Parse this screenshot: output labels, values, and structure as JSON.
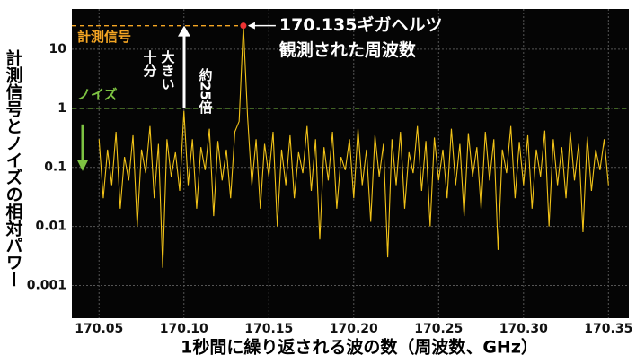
{
  "chart_data": {
    "type": "line",
    "x_label": "1秒間に繰り返される波の数（周波数、GHz）",
    "y_label": "計測信号とノイズの相対パワー",
    "log_y": true,
    "grid": true,
    "xlim": [
      170.034,
      170.362
    ],
    "ylim": [
      0.00028,
      48
    ],
    "xticks": [
      170.05,
      {
        "value": 170.1,
        "label": "170.10"
      },
      170.15,
      {
        "value": 170.2,
        "label": "170.20"
      },
      170.25,
      {
        "value": 170.3,
        "label": "170.30"
      },
      170.35
    ],
    "yticks": [
      10,
      1,
      0.1,
      0.01,
      0.001
    ],
    "x": [
      170.05,
      170.0525,
      170.055,
      170.0575,
      170.06,
      170.0625,
      170.065,
      170.0675,
      170.07,
      170.0725,
      170.075,
      170.0775,
      170.08,
      170.0825,
      170.085,
      170.0875,
      170.09,
      170.0925,
      170.095,
      170.0975,
      170.1,
      170.1025,
      170.105,
      170.1075,
      170.11,
      170.1125,
      170.115,
      170.1175,
      170.12,
      170.1225,
      170.125,
      170.1275,
      170.13,
      170.1325,
      170.135,
      170.1375,
      170.14,
      170.1425,
      170.145,
      170.1475,
      170.15,
      170.1525,
      170.155,
      170.1575,
      170.16,
      170.1625,
      170.165,
      170.1675,
      170.17,
      170.1725,
      170.175,
      170.1775,
      170.18,
      170.1825,
      170.185,
      170.1875,
      170.19,
      170.1925,
      170.195,
      170.1975,
      170.2,
      170.2025,
      170.205,
      170.2075,
      170.21,
      170.2125,
      170.215,
      170.2175,
      170.22,
      170.2225,
      170.225,
      170.2275,
      170.23,
      170.2325,
      170.235,
      170.2375,
      170.24,
      170.2425,
      170.245,
      170.2475,
      170.25,
      170.2525,
      170.255,
      170.2575,
      170.26,
      170.2625,
      170.265,
      170.2675,
      170.27,
      170.2725,
      170.275,
      170.2775,
      170.28,
      170.2825,
      170.285,
      170.2875,
      170.29,
      170.2925,
      170.295,
      170.2975,
      170.3,
      170.3025,
      170.305,
      170.3075,
      170.31,
      170.3125,
      170.315,
      170.3175,
      170.32,
      170.3225,
      170.325,
      170.3275,
      170.33,
      170.3325,
      170.335,
      170.3375,
      170.34,
      170.3425,
      170.345,
      170.3475,
      170.35
    ],
    "series": [
      {
        "color": "#f2c318",
        "values": [
          0.3,
          0.03,
          0.2,
          0.05,
          0.4,
          0.02,
          0.15,
          0.06,
          0.35,
          0.01,
          0.2,
          0.08,
          0.5,
          0.03,
          0.25,
          0.002,
          0.3,
          0.07,
          0.18,
          0.04,
          0.9,
          0.05,
          0.3,
          0.02,
          0.22,
          0.09,
          0.45,
          0.015,
          0.28,
          0.06,
          0.2,
          0.03,
          0.4,
          0.6,
          25,
          0.7,
          0.05,
          0.3,
          0.02,
          0.25,
          0.07,
          0.4,
          0.01,
          0.2,
          0.05,
          0.35,
          0.03,
          0.18,
          0.08,
          0.5,
          0.04,
          0.3,
          0.006,
          0.22,
          0.06,
          0.4,
          0.02,
          0.15,
          0.09,
          0.3,
          0.03,
          0.45,
          0.05,
          0.2,
          0.012,
          0.35,
          0.07,
          0.25,
          0.003,
          0.3,
          0.05,
          0.4,
          0.02,
          0.18,
          0.08,
          0.5,
          0.04,
          0.28,
          0.01,
          0.32,
          0.06,
          0.2,
          0.03,
          0.45,
          0.05,
          0.25,
          0.015,
          0.38,
          0.07,
          0.22,
          0.02,
          0.4,
          0.06,
          0.3,
          0.004,
          0.2,
          0.08,
          0.5,
          0.03,
          0.27,
          0.05,
          0.35,
          0.02,
          0.2,
          0.07,
          0.42,
          0.01,
          0.3,
          0.05,
          0.22,
          0.03,
          0.4,
          0.06,
          0.25,
          0.008,
          0.33,
          0.04,
          0.2,
          0.09,
          0.3,
          0.05
        ]
      }
    ],
    "reference_lines": [
      {
        "value": 25,
        "label": "計測信号",
        "color": "#f5a623"
      },
      {
        "value": 1,
        "label": "ノイズ",
        "color": "#7dc242"
      }
    ],
    "peak_annotation": [
      "170.135ギガヘルツ",
      "観測された周波数"
    ],
    "ratio_annotation": {
      "text": [
        "十分",
        "大きい"
      ],
      "ratio": "約25倍"
    }
  }
}
